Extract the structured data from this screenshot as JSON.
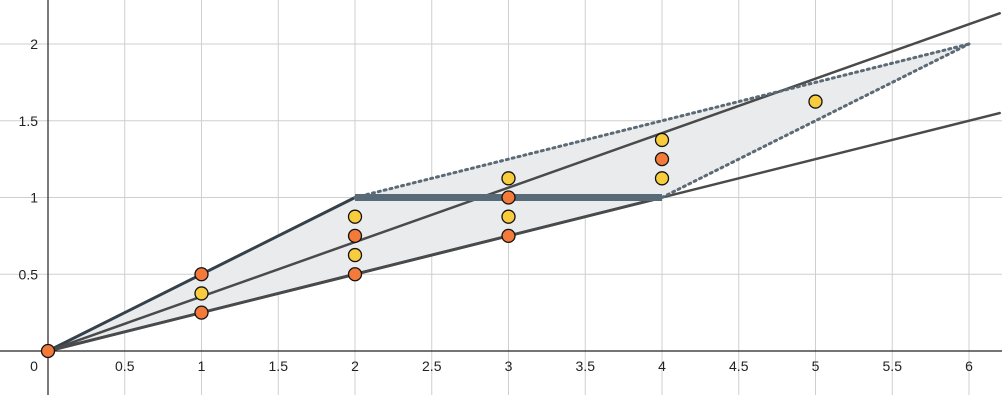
{
  "chart_data": {
    "type": "scatter",
    "xlim": [
      0,
      6.2
    ],
    "ylim": [
      0,
      2.2
    ],
    "grid": true,
    "x_ticks": [
      0.5,
      1,
      1.5,
      2,
      2.5,
      3,
      3.5,
      4,
      4.5,
      5,
      5.5,
      6
    ],
    "x_tick_labels": [
      "0.5",
      "1",
      "1.5",
      "2",
      "2.5",
      "3",
      "3.5",
      "4",
      "4.5",
      "5",
      "5.5",
      "6"
    ],
    "y_ticks": [
      0.5,
      1,
      1.5,
      2
    ],
    "y_tick_labels": [
      "0.5",
      "1",
      "1.5",
      "2"
    ],
    "origin_label": "0",
    "lines": [
      {
        "x": [
          0,
          6.2
        ],
        "y": [
          0,
          2.2
        ],
        "color": "#4a4a4a",
        "style": "solid"
      },
      {
        "x": [
          0,
          6.2
        ],
        "y": [
          0,
          1.55
        ],
        "color": "#4a4a4a",
        "style": "solid"
      },
      {
        "x": [
          2,
          4
        ],
        "y": [
          1,
          1
        ],
        "color": "#586a78",
        "style": "thick"
      },
      {
        "x": [
          2,
          6
        ],
        "y": [
          1,
          2
        ],
        "color": "#5c6a76",
        "style": "dotted"
      },
      {
        "x": [
          4,
          6
        ],
        "y": [
          1,
          2
        ],
        "color": "#5c6a76",
        "style": "dotted"
      }
    ],
    "regions": [
      {
        "points": [
          [
            0,
            0
          ],
          [
            2,
            1
          ],
          [
            4,
            1
          ],
          [
            2,
            0.5
          ]
        ],
        "fill": "#e9ebed",
        "edge": "#34404b"
      },
      {
        "points": [
          [
            2,
            1
          ],
          [
            6,
            2
          ],
          [
            4,
            1
          ]
        ],
        "fill": "#e9ebed",
        "edge": "none"
      }
    ],
    "series": [
      {
        "color": "#f47a3a",
        "points": [
          [
            0,
            0
          ],
          [
            1,
            0.5
          ],
          [
            1,
            0.25
          ],
          [
            2,
            0.75
          ],
          [
            2,
            0.5
          ],
          [
            3,
            1
          ],
          [
            3,
            0.75
          ],
          [
            4,
            1.25
          ]
        ]
      },
      {
        "color": "#f9cc3d",
        "points": [
          [
            1,
            0.375
          ],
          [
            2,
            0.875
          ],
          [
            2,
            0.625
          ],
          [
            3,
            1.125
          ],
          [
            3,
            0.875
          ],
          [
            4,
            1.375
          ],
          [
            4,
            1.125
          ],
          [
            5,
            1.625
          ]
        ]
      }
    ]
  }
}
